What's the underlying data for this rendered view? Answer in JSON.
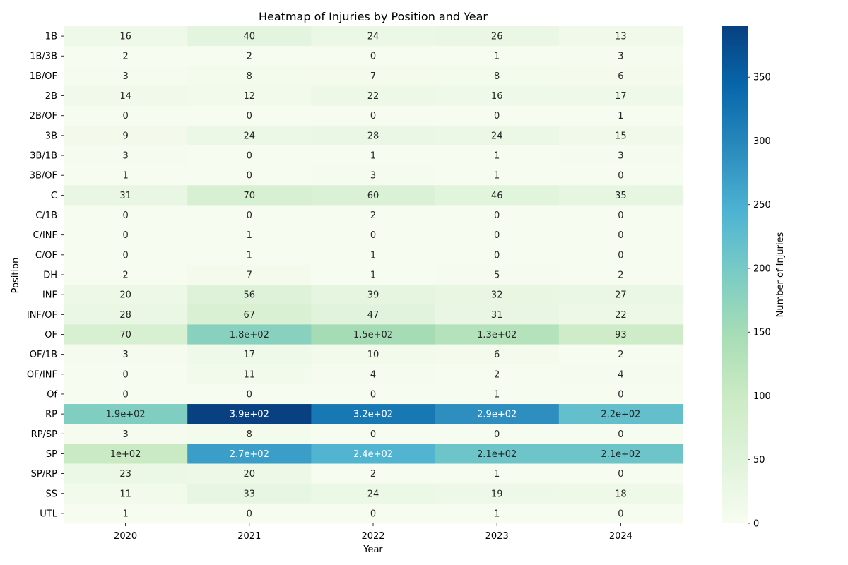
{
  "chart_data": {
    "type": "heatmap",
    "title": "Heatmap of Injuries by Position and Year",
    "xlabel": "Year",
    "ylabel": "Position",
    "colorbar_label": "Number of Injuries",
    "colormap": "GnBu",
    "x": [
      "2020",
      "2021",
      "2022",
      "2023",
      "2024"
    ],
    "y": [
      "1B",
      "1B/3B",
      "1B/OF",
      "2B",
      "2B/OF",
      "3B",
      "3B/1B",
      "3B/OF",
      "C",
      "C/1B",
      "C/INF",
      "C/OF",
      "DH",
      "INF",
      "INF/OF",
      "OF",
      "OF/1B",
      "OF/INF",
      "Of",
      "RP",
      "RP/SP",
      "SP",
      "SP/RP",
      "SS",
      "UTL"
    ],
    "values": [
      [
        16,
        40,
        24,
        26,
        13
      ],
      [
        2,
        2,
        0,
        1,
        3
      ],
      [
        3,
        8,
        7,
        8,
        6
      ],
      [
        14,
        12,
        22,
        16,
        17
      ],
      [
        0,
        0,
        0,
        0,
        1
      ],
      [
        9,
        24,
        28,
        24,
        15
      ],
      [
        3,
        0,
        1,
        1,
        3
      ],
      [
        1,
        0,
        3,
        1,
        0
      ],
      [
        31,
        70,
        60,
        46,
        35
      ],
      [
        0,
        0,
        2,
        0,
        0
      ],
      [
        0,
        1,
        0,
        0,
        0
      ],
      [
        0,
        1,
        1,
        0,
        0
      ],
      [
        2,
        7,
        1,
        5,
        2
      ],
      [
        20,
        56,
        39,
        32,
        27
      ],
      [
        28,
        67,
        47,
        31,
        22
      ],
      [
        70,
        180,
        150,
        130,
        93
      ],
      [
        3,
        17,
        10,
        6,
        2
      ],
      [
        0,
        11,
        4,
        2,
        4
      ],
      [
        0,
        0,
        0,
        1,
        0
      ],
      [
        190,
        390,
        320,
        290,
        220
      ],
      [
        3,
        8,
        0,
        0,
        0
      ],
      [
        100,
        270,
        240,
        210,
        210
      ],
      [
        23,
        20,
        2,
        1,
        0
      ],
      [
        11,
        33,
        24,
        19,
        18
      ],
      [
        1,
        0,
        0,
        1,
        0
      ]
    ],
    "cell_labels": [
      [
        "16",
        "40",
        "24",
        "26",
        "13"
      ],
      [
        "2",
        "2",
        "0",
        "1",
        "3"
      ],
      [
        "3",
        "8",
        "7",
        "8",
        "6"
      ],
      [
        "14",
        "12",
        "22",
        "16",
        "17"
      ],
      [
        "0",
        "0",
        "0",
        "0",
        "1"
      ],
      [
        "9",
        "24",
        "28",
        "24",
        "15"
      ],
      [
        "3",
        "0",
        "1",
        "1",
        "3"
      ],
      [
        "1",
        "0",
        "3",
        "1",
        "0"
      ],
      [
        "31",
        "70",
        "60",
        "46",
        "35"
      ],
      [
        "0",
        "0",
        "2",
        "0",
        "0"
      ],
      [
        "0",
        "1",
        "0",
        "0",
        "0"
      ],
      [
        "0",
        "1",
        "1",
        "0",
        "0"
      ],
      [
        "2",
        "7",
        "1",
        "5",
        "2"
      ],
      [
        "20",
        "56",
        "39",
        "32",
        "27"
      ],
      [
        "28",
        "67",
        "47",
        "31",
        "22"
      ],
      [
        "70",
        "1.8e+02",
        "1.5e+02",
        "1.3e+02",
        "93"
      ],
      [
        "3",
        "17",
        "10",
        "6",
        "2"
      ],
      [
        "0",
        "11",
        "4",
        "2",
        "4"
      ],
      [
        "0",
        "0",
        "0",
        "1",
        "0"
      ],
      [
        "1.9e+02",
        "3.9e+02",
        "3.2e+02",
        "2.9e+02",
        "2.2e+02"
      ],
      [
        "3",
        "8",
        "0",
        "0",
        "0"
      ],
      [
        "1e+02",
        "2.7e+02",
        "2.4e+02",
        "2.1e+02",
        "2.1e+02"
      ],
      [
        "23",
        "20",
        "2",
        "1",
        "0"
      ],
      [
        "11",
        "33",
        "24",
        "19",
        "18"
      ],
      [
        "1",
        "0",
        "0",
        "1",
        "0"
      ]
    ],
    "vmin": 0,
    "vmax": 390,
    "colorbar_ticks": [
      0,
      50,
      100,
      150,
      200,
      250,
      300,
      350
    ],
    "colorbar_tick_labels": [
      "0",
      "50",
      "100",
      "150",
      "200",
      "250",
      "300",
      "350"
    ]
  }
}
